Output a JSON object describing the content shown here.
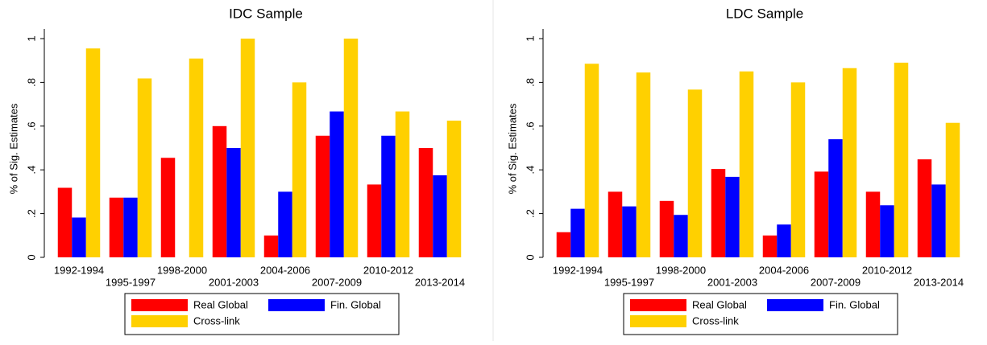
{
  "chart_data": [
    {
      "type": "bar",
      "title": "IDC Sample",
      "y_label": "% of Sig. Estimates",
      "categories": [
        "1992-1994",
        "1995-1997",
        "1998-2000",
        "2001-2003",
        "2004-2006",
        "2007-2009",
        "2010-2012",
        "2013-2014"
      ],
      "series": [
        {
          "name": "Real Global",
          "color": "#ff0000",
          "values": [
            0.318,
            0.273,
            0.455,
            0.6,
            0.1,
            0.556,
            0.333,
            0.5
          ]
        },
        {
          "name": "Fin. Global",
          "color": "#0000ff",
          "values": [
            0.182,
            0.273,
            0,
            0.5,
            0.3,
            0.667,
            0.556,
            0.375
          ]
        },
        {
          "name": "Cross-link",
          "color": "#ffd000",
          "values": [
            0.955,
            0.818,
            0.909,
            1,
            0.8,
            1,
            0.667,
            0.625
          ]
        }
      ],
      "ylim": [
        0,
        1
      ],
      "yticks": [
        0,
        {
          "value": 0.2,
          "label": ".2"
        },
        {
          "value": 0.4,
          "label": ".4"
        },
        {
          "value": 0.6,
          "label": ".6"
        },
        {
          "value": 0.8,
          "label": ".8"
        },
        1
      ]
    },
    {
      "type": "bar",
      "title": "LDC Sample",
      "y_label": "% of Sig. Estimates",
      "categories": [
        "1992-1994",
        "1995-1997",
        "1998-2000",
        "2001-2003",
        "2004-2006",
        "2007-2009",
        "2010-2012",
        "2013-2014"
      ],
      "series": [
        {
          "name": "Real Global",
          "color": "#ff0000",
          "values": [
            0.115,
            0.3,
            0.258,
            0.404,
            0.1,
            0.392,
            0.3,
            0.448
          ]
        },
        {
          "name": "Fin. Global",
          "color": "#0000ff",
          "values": [
            0.222,
            0.233,
            0.194,
            0.368,
            0.15,
            0.54,
            0.238,
            0.333
          ]
        },
        {
          "name": "Cross-link",
          "color": "#ffd000",
          "values": [
            0.885,
            0.845,
            0.767,
            0.85,
            0.8,
            0.865,
            0.89,
            0.615
          ]
        }
      ],
      "ylim": [
        0,
        1
      ],
      "yticks": [
        0,
        {
          "value": 0.2,
          "label": ".2"
        },
        {
          "value": 0.4,
          "label": ".4"
        },
        {
          "value": 0.6,
          "label": ".6"
        },
        {
          "value": 0.8,
          "label": ".8"
        },
        1
      ]
    }
  ]
}
